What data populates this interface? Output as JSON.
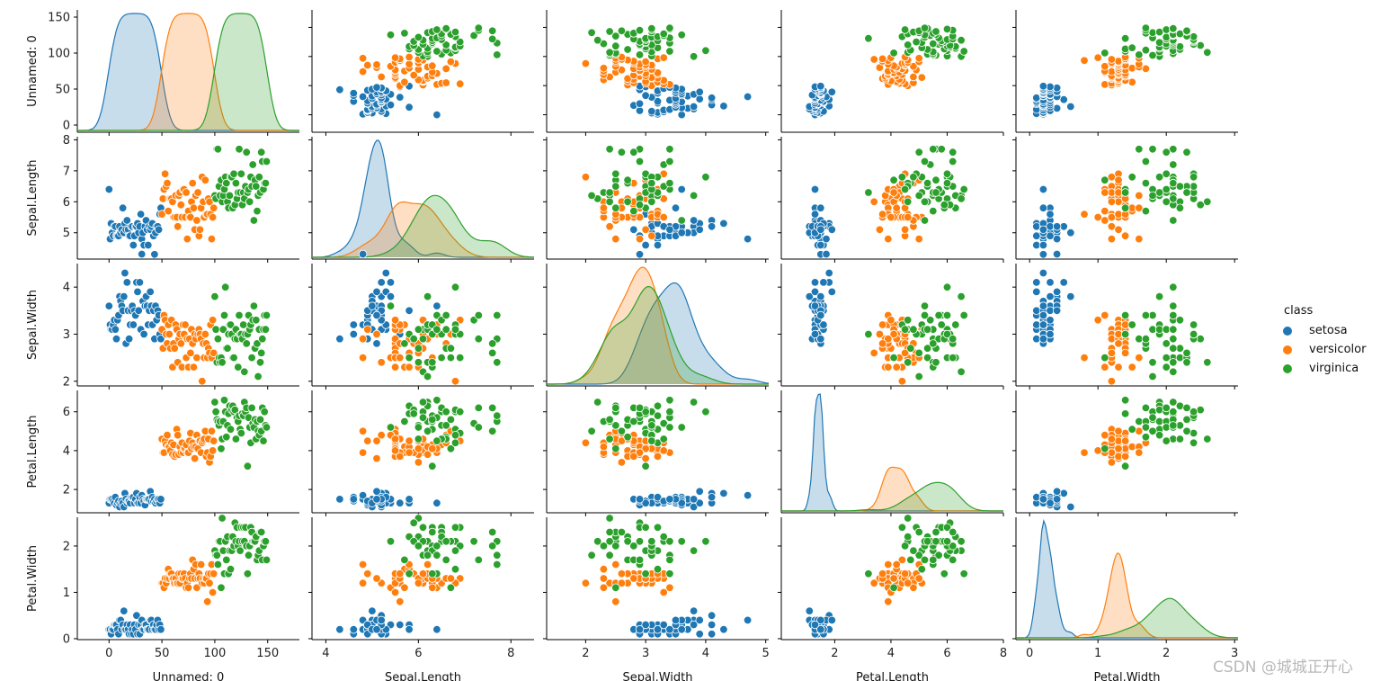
{
  "chart_data": {
    "type": "pairplot",
    "vars": [
      {
        "name": "Unnamed: 0",
        "xlabel": "Unnamed: 0",
        "ylabel": "Unnamed: 0",
        "range": [
          -30,
          180
        ],
        "ticks": [
          "0",
          "50",
          "100",
          "150"
        ],
        "tickvals": [
          0,
          50,
          100,
          150
        ]
      },
      {
        "name": "Sepal.Length",
        "xlabel": "Sepal.Length",
        "ylabel": "Sepal.Length",
        "range": [
          3.7,
          8.5
        ],
        "yrange": [
          4.15,
          8.1
        ],
        "ticks": [
          "4",
          "6",
          "8"
        ],
        "tickvals": [
          4,
          6,
          8
        ],
        "yticks": [
          "5",
          "6",
          "7",
          "8"
        ],
        "ytickvals": [
          5,
          6,
          7,
          8
        ]
      },
      {
        "name": "Sepal.Width",
        "xlabel": "Sepal.Width",
        "ylabel": "Sepal.Width",
        "range": [
          1.35,
          5.05
        ],
        "yrange": [
          1.9,
          4.5
        ],
        "ticks": [
          "2",
          "3",
          "4",
          "5"
        ],
        "tickvals": [
          2,
          3,
          4,
          5
        ],
        "yticks": [
          "2",
          "3",
          "4"
        ],
        "ytickvals": [
          2,
          3,
          4
        ]
      },
      {
        "name": "Petal.Length",
        "xlabel": "Petal.Length",
        "ylabel": "Petal.Length",
        "range": [
          0.1,
          8.0
        ],
        "yrange": [
          0.8,
          7.1
        ],
        "ticks": [
          "2",
          "4",
          "6",
          "8"
        ],
        "tickvals": [
          2,
          4,
          6,
          8
        ],
        "yticks": [
          "2",
          "4",
          "6"
        ],
        "ytickvals": [
          2,
          4,
          6
        ]
      },
      {
        "name": "Petal.Width",
        "xlabel": "Petal.Width",
        "ylabel": "Petal.Width",
        "range": [
          -0.2,
          3.05
        ],
        "yrange": [
          -0.02,
          2.62
        ],
        "ticks": [
          "0",
          "1",
          "2",
          "3"
        ],
        "tickvals": [
          0,
          1,
          2,
          3
        ],
        "yticks": [
          "0",
          "1",
          "2"
        ],
        "ytickvals": [
          0,
          1,
          2
        ]
      }
    ],
    "diag_ylim_first": [
      -10,
      160
    ],
    "classes": [
      {
        "name": "setosa",
        "color": "#1f77b4",
        "index_range": [
          1,
          50
        ],
        "sl_mean": 5.006,
        "sl_sd": 0.352,
        "sw_mean": 3.428,
        "sw_sd": 0.379,
        "pl_mean": 1.462,
        "pl_sd": 0.174,
        "pw_mean": 0.246,
        "pw_sd": 0.105
      },
      {
        "name": "versicolor",
        "color": "#ff7f0e",
        "index_range": [
          51,
          100
        ],
        "sl_mean": 5.936,
        "sl_sd": 0.516,
        "sw_mean": 2.77,
        "sw_sd": 0.314,
        "pl_mean": 4.26,
        "pl_sd": 0.47,
        "pw_mean": 1.326,
        "pw_sd": 0.198
      },
      {
        "name": "virginica",
        "color": "#2ca02c",
        "index_range": [
          101,
          150
        ],
        "sl_mean": 6.588,
        "sl_sd": 0.636,
        "sw_mean": 2.974,
        "sw_sd": 0.322,
        "pl_mean": 5.552,
        "pl_sd": 0.552,
        "pw_mean": 2.026,
        "pw_sd": 0.275
      }
    ],
    "legend": {
      "title": "class",
      "placement": "right",
      "entries": [
        "setosa",
        "versicolor",
        "virginica"
      ]
    }
  },
  "watermark": "CSDN @城城正开心"
}
